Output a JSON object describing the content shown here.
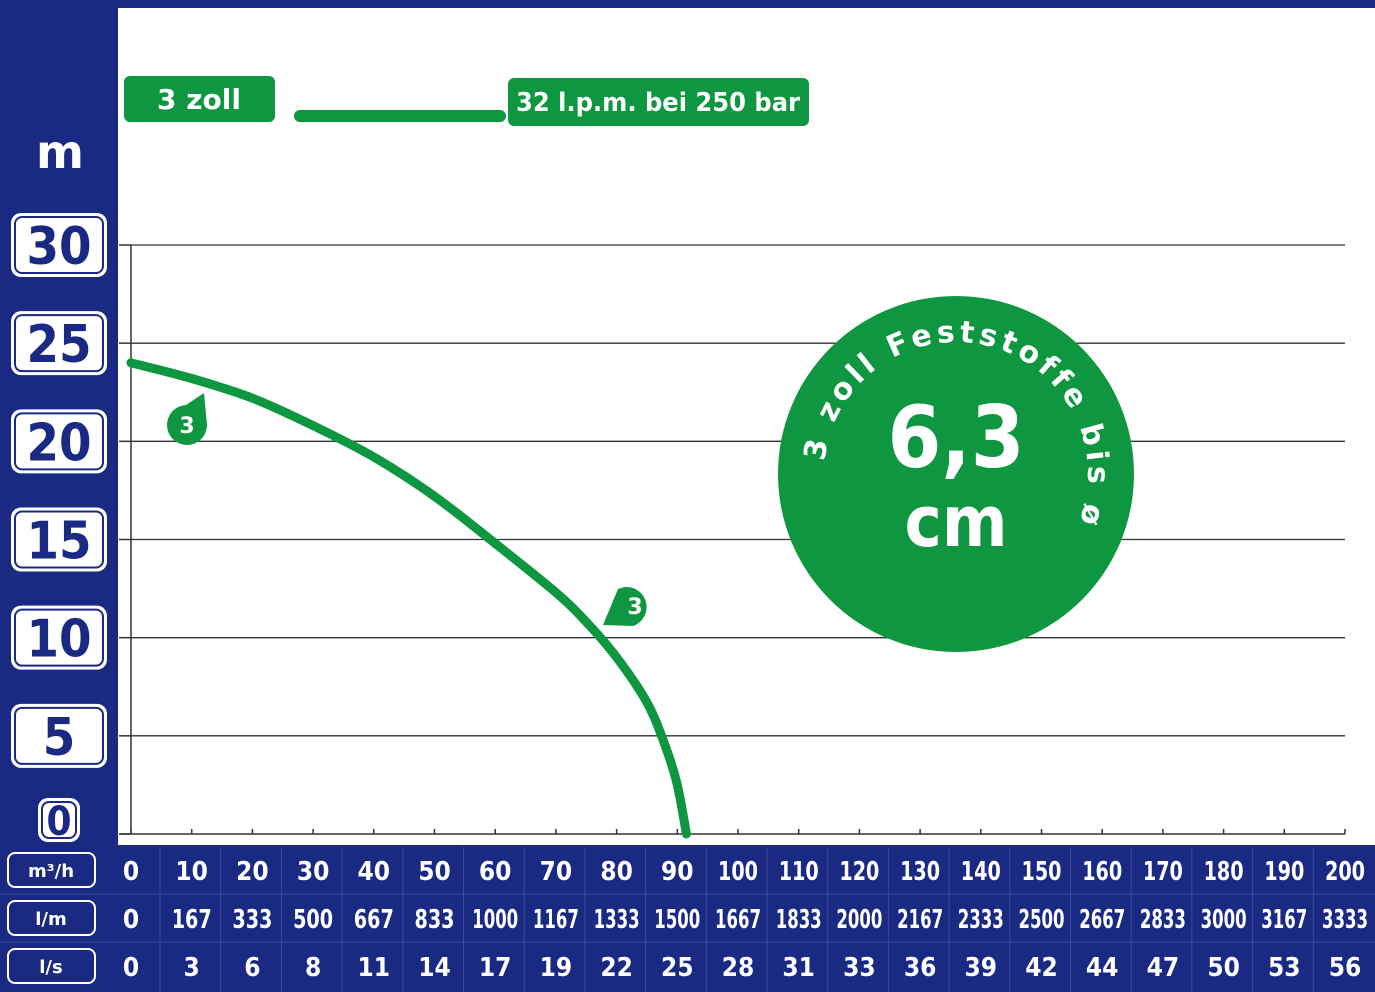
{
  "colors": {
    "navy": "#1a2a83",
    "green": "#0e9640",
    "grid": "#333333",
    "white": "#ffffff"
  },
  "legend": {
    "badge": "3 zoll",
    "spec": "32 l.p.m. bei 250 bar"
  },
  "chart_data": {
    "type": "line",
    "ylabel": "m",
    "y_ticks": [
      "30",
      "25",
      "20",
      "15",
      "10",
      "5",
      "0"
    ],
    "ylim": [
      0,
      30
    ],
    "xlim": [
      0,
      200
    ],
    "grid": true,
    "x_rows": [
      {
        "unit": "m³/h",
        "values": [
          "0",
          "10",
          "20",
          "30",
          "40",
          "50",
          "60",
          "70",
          "80",
          "90",
          "100",
          "110",
          "120",
          "130",
          "140",
          "150",
          "160",
          "170",
          "180",
          "190",
          "200"
        ]
      },
      {
        "unit": "l/m",
        "values": [
          "0",
          "167",
          "333",
          "500",
          "667",
          "833",
          "1000",
          "1167",
          "1333",
          "1500",
          "1667",
          "1833",
          "2000",
          "2167",
          "2333",
          "2500",
          "2667",
          "2833",
          "3000",
          "3167",
          "3333"
        ]
      },
      {
        "unit": "l/s",
        "values": [
          "0",
          "3",
          "6",
          "8",
          "11",
          "14",
          "17",
          "19",
          "22",
          "25",
          "28",
          "31",
          "33",
          "36",
          "39",
          "42",
          "44",
          "47",
          "50",
          "53",
          "56"
        ]
      }
    ],
    "series": [
      {
        "name": "3",
        "color": "#0e9640",
        "x": [
          0,
          10,
          20,
          30,
          40,
          50,
          60,
          70,
          75,
          80,
          85,
          88,
          90,
          91.5
        ],
        "y": [
          24,
          23.2,
          22.2,
          20.8,
          19.2,
          17.2,
          14.8,
          12.3,
          10.8,
          9.0,
          6.7,
          4.5,
          2.5,
          0
        ]
      }
    ],
    "markers": [
      "3",
      "3"
    ],
    "badge": {
      "arc_text": "3 zoll Feststoffe bis ø",
      "value": "6,3",
      "unit": "cm"
    }
  }
}
